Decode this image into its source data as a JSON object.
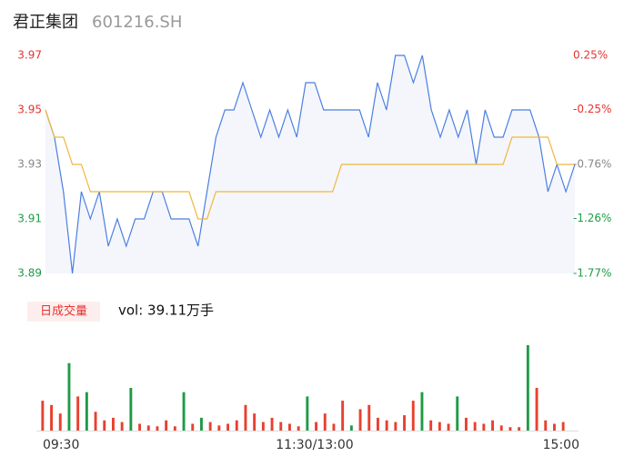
{
  "chart_data": [
    {
      "type": "line",
      "title": "君正集团",
      "subtitle": "601216.SH",
      "categories": [
        "09:30",
        null,
        null,
        null,
        null,
        null,
        null,
        null,
        null,
        null,
        null,
        null,
        null,
        null,
        null,
        null,
        null,
        null,
        null,
        null,
        null,
        null,
        null,
        null,
        null,
        null,
        null,
        null,
        null,
        null,
        "11:30/13:00",
        null,
        null,
        null,
        null,
        null,
        null,
        null,
        null,
        null,
        null,
        null,
        null,
        null,
        null,
        null,
        null,
        null,
        null,
        null,
        null,
        null,
        null,
        null,
        null,
        null,
        null,
        null,
        null,
        "15:00"
      ],
      "series": [
        {
          "color": "#4a7fe0",
          "fill": "#f4f6fc",
          "values": [
            3.95,
            3.94,
            3.92,
            3.89,
            3.92,
            3.91,
            3.92,
            3.9,
            3.91,
            3.9,
            3.91,
            3.91,
            3.92,
            3.92,
            3.91,
            3.91,
            3.91,
            3.9,
            3.92,
            3.94,
            3.95,
            3.95,
            3.96,
            3.95,
            3.94,
            3.95,
            3.94,
            3.95,
            3.94,
            3.96,
            3.96,
            3.95,
            3.95,
            3.95,
            3.95,
            3.95,
            3.94,
            3.96,
            3.95,
            3.97,
            3.97,
            3.96,
            3.97,
            3.95,
            3.94,
            3.95,
            3.94,
            3.95,
            3.93,
            3.95,
            3.94,
            3.94,
            3.95,
            3.95,
            3.95,
            3.94,
            3.92,
            3.93,
            3.92,
            3.93
          ]
        },
        {
          "color": "#f0b63c",
          "values": [
            3.95,
            3.94,
            3.94,
            3.93,
            3.93,
            3.92,
            3.92,
            3.92,
            3.92,
            3.92,
            3.92,
            3.92,
            3.92,
            3.92,
            3.92,
            3.92,
            3.92,
            3.91,
            3.91,
            3.92,
            3.92,
            3.92,
            3.92,
            3.92,
            3.92,
            3.92,
            3.92,
            3.92,
            3.92,
            3.92,
            3.92,
            3.92,
            3.92,
            3.93,
            3.93,
            3.93,
            3.93,
            3.93,
            3.93,
            3.93,
            3.93,
            3.93,
            3.93,
            3.93,
            3.93,
            3.93,
            3.93,
            3.93,
            3.93,
            3.93,
            3.93,
            3.93,
            3.94,
            3.94,
            3.94,
            3.94,
            3.94,
            3.93,
            3.93,
            3.93
          ]
        }
      ],
      "ylim": [
        3.89,
        3.97
      ],
      "yticks": [
        3.97,
        3.95,
        3.93,
        3.91,
        3.89
      ],
      "ytick_colors": [
        "#e8312f",
        "#e8312f",
        "#888888",
        "#1e9b46",
        "#1e9b46"
      ],
      "y2lim": [
        -1.77,
        0.25
      ],
      "y2ticks": [
        {
          "value": 0.25,
          "label": "0.25%"
        },
        {
          "value": -0.25,
          "label": "-0.25%"
        },
        {
          "value": -0.76,
          "label": "-0.76%"
        },
        {
          "value": -1.26,
          "label": "-1.26%"
        },
        {
          "value": -1.77,
          "label": "-1.77%"
        }
      ]
    },
    {
      "type": "bar",
      "title": "日成交量",
      "annotation": "vol: 39.11万手",
      "ylim": [
        0,
        100
      ],
      "values": [
        35,
        30,
        20,
        79,
        40,
        45,
        22,
        12,
        15,
        10,
        50,
        8,
        6,
        5,
        12,
        5,
        45,
        8,
        15,
        10,
        6,
        8,
        12,
        30,
        20,
        10,
        15,
        10,
        8,
        5,
        40,
        10,
        20,
        8,
        35,
        6,
        25,
        30,
        15,
        12,
        10,
        18,
        35,
        45,
        12,
        10,
        8,
        40,
        15,
        10,
        8,
        12,
        6,
        4,
        4,
        100,
        50,
        12,
        8,
        10
      ],
      "colors": [
        "#e8412e",
        "#e8412e",
        "#e8412e",
        "#1e9b46",
        "#e8412e",
        "#1e9b46",
        "#e8412e",
        "#e8412e",
        "#e8412e",
        "#e8412e",
        "#1e9b46",
        "#e8412e",
        "#e8412e",
        "#e8412e",
        "#e8412e",
        "#e8412e",
        "#1e9b46",
        "#e8412e",
        "#1e9b46",
        "#e8412e",
        "#e8412e",
        "#e8412e",
        "#e8412e",
        "#e8412e",
        "#e8412e",
        "#e8412e",
        "#e8412e",
        "#e8412e",
        "#e8412e",
        "#e8412e",
        "#1e9b46",
        "#e8412e",
        "#e8412e",
        "#e8412e",
        "#e8412e",
        "#1e9b46",
        "#e8412e",
        "#e8412e",
        "#e8412e",
        "#e8412e",
        "#e8412e",
        "#e8412e",
        "#e8412e",
        "#1e9b46",
        "#e8412e",
        "#e8412e",
        "#e8412e",
        "#1e9b46",
        "#e8412e",
        "#e8412e",
        "#e8412e",
        "#e8412e",
        "#e8412e",
        "#e8412e",
        "#e8412e",
        "#1e9b46",
        "#e8412e",
        "#e8412e",
        "#e8412e",
        "#e8412e"
      ]
    }
  ]
}
